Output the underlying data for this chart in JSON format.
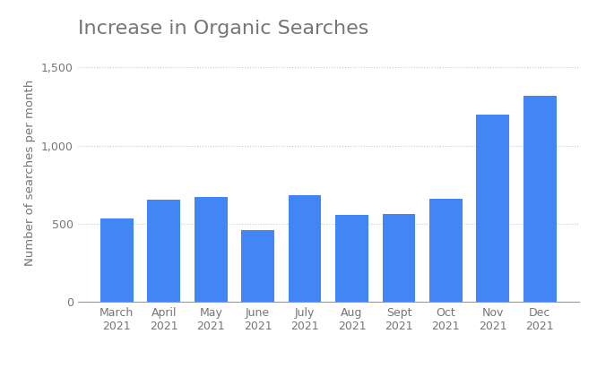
{
  "title": "Increase in Organic Searches",
  "ylabel": "Number of searches per month",
  "categories": [
    "March\n2021",
    "April\n2021",
    "May\n2021",
    "June\n2021",
    "July\n2021",
    "Aug\n2021",
    "Sept\n2021",
    "Oct\n2021",
    "Nov\n2021",
    "Dec\n2021"
  ],
  "values": [
    535,
    655,
    670,
    460,
    680,
    555,
    560,
    660,
    1200,
    1320
  ],
  "bar_color": "#4285f4",
  "background_color": "#ffffff",
  "ylim": [
    0,
    1650
  ],
  "yticks": [
    0,
    500,
    1000,
    1500
  ],
  "ytick_labels": [
    "0",
    "500",
    "1,000",
    "1,500"
  ],
  "grid_color": "#c8c8c8",
  "title_fontsize": 16,
  "label_fontsize": 9.5,
  "tick_fontsize": 9,
  "title_color": "#757575",
  "tick_color": "#757575",
  "ylabel_color": "#757575"
}
